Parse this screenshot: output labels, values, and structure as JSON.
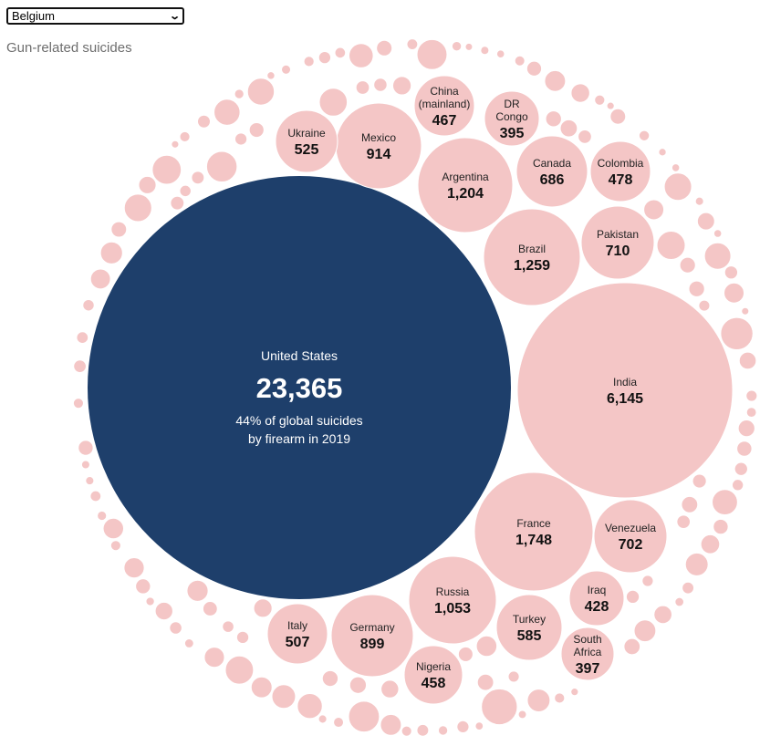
{
  "controls": {
    "country_select": "Belgium"
  },
  "subtitle": "Gun-related suicides",
  "colors": {
    "highlight": "#1e3f6b",
    "bubble": "#f4c6c6",
    "stroke": "#ffffff"
  },
  "chart_data": {
    "type": "bubble",
    "title": "Gun-related suicides",
    "highlight": {
      "country": "United States",
      "value": 23365,
      "value_label": "23,365",
      "caption_line1": "44% of global suicides",
      "caption_line2": "by firearm in 2019"
    },
    "bubbles": [
      {
        "name": [
          "India"
        ],
        "value": 6145,
        "label": "6,145"
      },
      {
        "name": [
          "France"
        ],
        "value": 1748,
        "label": "1,748"
      },
      {
        "name": [
          "Brazil"
        ],
        "value": 1259,
        "label": "1,259"
      },
      {
        "name": [
          "Argentina"
        ],
        "value": 1204,
        "label": "1,204"
      },
      {
        "name": [
          "Russia"
        ],
        "value": 1053,
        "label": "1,053"
      },
      {
        "name": [
          "Mexico"
        ],
        "value": 914,
        "label": "914"
      },
      {
        "name": [
          "Germany"
        ],
        "value": 899,
        "label": "899"
      },
      {
        "name": [
          "Pakistan"
        ],
        "value": 710,
        "label": "710"
      },
      {
        "name": [
          "Venezuela"
        ],
        "value": 702,
        "label": "702"
      },
      {
        "name": [
          "Canada"
        ],
        "value": 686,
        "label": "686"
      },
      {
        "name": [
          "Turkey"
        ],
        "value": 585,
        "label": "585"
      },
      {
        "name": [
          "Ukraine"
        ],
        "value": 525,
        "label": "525"
      },
      {
        "name": [
          "Italy"
        ],
        "value": 507,
        "label": "507"
      },
      {
        "name": [
          "Colombia"
        ],
        "value": 478,
        "label": "478"
      },
      {
        "name": [
          "China",
          "(mainland)"
        ],
        "value": 467,
        "label": "467"
      },
      {
        "name": [
          "Nigeria"
        ],
        "value": 458,
        "label": "458"
      },
      {
        "name": [
          "Iraq"
        ],
        "value": 428,
        "label": "428"
      },
      {
        "name": [
          "South",
          "Africa"
        ],
        "value": 397,
        "label": "397"
      },
      {
        "name": [
          "DR",
          "Congo"
        ],
        "value": 395,
        "label": "395"
      }
    ]
  }
}
